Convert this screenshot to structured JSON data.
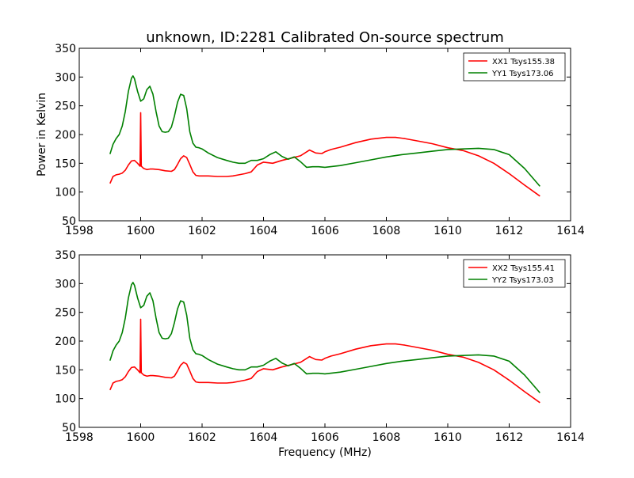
{
  "figure": {
    "title": "unknown, ID:2281 Calibrated On-source spectrum"
  },
  "chart_data": [
    {
      "type": "line",
      "title": "unknown, ID:2281 Calibrated On-source spectrum",
      "xlabel": "",
      "ylabel": "Power in Kelvin",
      "xlim": [
        1598,
        1614
      ],
      "ylim": [
        50,
        350
      ],
      "xticks": [
        1598,
        1600,
        1602,
        1604,
        1606,
        1608,
        1610,
        1612,
        1614
      ],
      "yticks": [
        50,
        100,
        150,
        200,
        250,
        300,
        350
      ],
      "grid": false,
      "legend": "top-right",
      "series": [
        {
          "name": "XX1 Tsys155.38",
          "color": "#ff0000",
          "x": [
            1599.0,
            1599.1,
            1599.2,
            1599.3,
            1599.4,
            1599.5,
            1599.6,
            1599.7,
            1599.8,
            1599.9,
            1599.98,
            1600.0,
            1600.02,
            1600.1,
            1600.2,
            1600.3,
            1600.4,
            1600.6,
            1600.8,
            1601.0,
            1601.1,
            1601.2,
            1601.3,
            1601.4,
            1601.5,
            1601.6,
            1601.7,
            1601.8,
            1601.9,
            1602.0,
            1602.2,
            1602.5,
            1602.8,
            1603.0,
            1603.2,
            1603.4,
            1603.6,
            1603.8,
            1604.0,
            1604.3,
            1604.6,
            1604.9,
            1605.2,
            1605.5,
            1605.7,
            1605.9,
            1606.0,
            1606.2,
            1606.5,
            1607.0,
            1607.5,
            1608.0,
            1608.3,
            1608.6,
            1609.0,
            1609.5,
            1610.0,
            1610.5,
            1611.0,
            1611.5,
            1612.0,
            1612.5,
            1613.0
          ],
          "values": [
            115,
            127,
            130,
            131,
            133,
            138,
            147,
            154,
            155,
            150,
            145,
            238,
            145,
            141,
            139,
            140,
            140,
            139,
            137,
            136,
            139,
            148,
            158,
            163,
            160,
            148,
            135,
            129,
            128,
            128,
            128,
            127,
            127,
            128,
            130,
            132,
            135,
            147,
            152,
            150,
            155,
            159,
            163,
            173,
            168,
            167,
            170,
            174,
            178,
            186,
            192,
            195,
            195,
            193,
            189,
            184,
            177,
            172,
            163,
            150,
            132,
            112,
            93
          ]
        },
        {
          "name": "YY1 Tsys173.06",
          "color": "#008000",
          "x": [
            1599.0,
            1599.1,
            1599.2,
            1599.3,
            1599.4,
            1599.5,
            1599.6,
            1599.7,
            1599.75,
            1599.8,
            1599.9,
            1600.0,
            1600.1,
            1600.2,
            1600.3,
            1600.4,
            1600.5,
            1600.6,
            1600.7,
            1600.8,
            1600.9,
            1601.0,
            1601.1,
            1601.2,
            1601.3,
            1601.4,
            1601.5,
            1601.6,
            1601.7,
            1601.8,
            1601.9,
            1602.0,
            1602.2,
            1602.5,
            1602.8,
            1603.0,
            1603.2,
            1603.4,
            1603.6,
            1603.8,
            1604.0,
            1604.2,
            1604.4,
            1604.6,
            1604.8,
            1605.0,
            1605.2,
            1605.4,
            1605.6,
            1605.8,
            1606.0,
            1606.5,
            1607.0,
            1607.5,
            1608.0,
            1608.5,
            1609.0,
            1609.5,
            1610.0,
            1610.5,
            1611.0,
            1611.5,
            1612.0,
            1612.5,
            1613.0
          ],
          "values": [
            166,
            183,
            193,
            200,
            215,
            240,
            275,
            298,
            302,
            297,
            275,
            258,
            262,
            278,
            284,
            270,
            240,
            215,
            205,
            204,
            205,
            213,
            232,
            256,
            270,
            268,
            245,
            205,
            185,
            178,
            177,
            175,
            168,
            160,
            155,
            152,
            150,
            150,
            155,
            155,
            158,
            165,
            170,
            162,
            157,
            161,
            153,
            143,
            144,
            144,
            143,
            146,
            151,
            156,
            161,
            165,
            168,
            171,
            174,
            175,
            176,
            174,
            165,
            141,
            110
          ]
        }
      ]
    },
    {
      "type": "line",
      "title": "",
      "xlabel": "Frequency (MHz)",
      "ylabel": "",
      "xlim": [
        1598,
        1614
      ],
      "ylim": [
        50,
        350
      ],
      "xticks": [
        1598,
        1600,
        1602,
        1604,
        1606,
        1608,
        1610,
        1612,
        1614
      ],
      "yticks": [
        50,
        100,
        150,
        200,
        250,
        300,
        350
      ],
      "grid": false,
      "legend": "top-right",
      "series": [
        {
          "name": "XX2 Tsys155.41",
          "color": "#ff0000",
          "x": [
            1599.0,
            1599.1,
            1599.2,
            1599.3,
            1599.4,
            1599.5,
            1599.6,
            1599.7,
            1599.8,
            1599.9,
            1599.98,
            1600.0,
            1600.02,
            1600.1,
            1600.2,
            1600.3,
            1600.4,
            1600.6,
            1600.8,
            1601.0,
            1601.1,
            1601.2,
            1601.3,
            1601.4,
            1601.5,
            1601.6,
            1601.7,
            1601.8,
            1601.9,
            1602.0,
            1602.2,
            1602.5,
            1602.8,
            1603.0,
            1603.2,
            1603.4,
            1603.6,
            1603.8,
            1604.0,
            1604.3,
            1604.6,
            1604.9,
            1605.2,
            1605.5,
            1605.7,
            1605.9,
            1606.0,
            1606.2,
            1606.5,
            1607.0,
            1607.5,
            1608.0,
            1608.3,
            1608.6,
            1609.0,
            1609.5,
            1610.0,
            1610.5,
            1611.0,
            1611.5,
            1612.0,
            1612.5,
            1613.0
          ],
          "values": [
            115,
            127,
            130,
            131,
            133,
            138,
            147,
            154,
            155,
            150,
            145,
            238,
            145,
            141,
            139,
            140,
            140,
            139,
            137,
            136,
            139,
            148,
            158,
            163,
            160,
            148,
            135,
            129,
            128,
            128,
            128,
            127,
            127,
            128,
            130,
            132,
            135,
            147,
            152,
            150,
            155,
            159,
            163,
            173,
            168,
            167,
            170,
            174,
            178,
            186,
            192,
            195,
            195,
            193,
            189,
            184,
            177,
            172,
            163,
            150,
            132,
            112,
            93
          ]
        },
        {
          "name": "YY2 Tsys173.03",
          "color": "#008000",
          "x": [
            1599.0,
            1599.1,
            1599.2,
            1599.3,
            1599.4,
            1599.5,
            1599.6,
            1599.7,
            1599.75,
            1599.8,
            1599.9,
            1600.0,
            1600.1,
            1600.2,
            1600.3,
            1600.4,
            1600.5,
            1600.6,
            1600.7,
            1600.8,
            1600.9,
            1601.0,
            1601.1,
            1601.2,
            1601.3,
            1601.4,
            1601.5,
            1601.6,
            1601.7,
            1601.8,
            1601.9,
            1602.0,
            1602.2,
            1602.5,
            1602.8,
            1603.0,
            1603.2,
            1603.4,
            1603.6,
            1603.8,
            1604.0,
            1604.2,
            1604.4,
            1604.6,
            1604.8,
            1605.0,
            1605.2,
            1605.4,
            1605.6,
            1605.8,
            1606.0,
            1606.5,
            1607.0,
            1607.5,
            1608.0,
            1608.5,
            1609.0,
            1609.5,
            1610.0,
            1610.5,
            1611.0,
            1611.5,
            1612.0,
            1612.5,
            1613.0
          ],
          "values": [
            166,
            183,
            193,
            200,
            215,
            240,
            275,
            298,
            302,
            297,
            275,
            258,
            262,
            278,
            284,
            270,
            240,
            215,
            205,
            204,
            205,
            213,
            232,
            256,
            270,
            268,
            245,
            205,
            185,
            178,
            177,
            175,
            168,
            160,
            155,
            152,
            150,
            150,
            155,
            155,
            158,
            165,
            170,
            162,
            157,
            161,
            153,
            143,
            144,
            144,
            143,
            146,
            151,
            156,
            161,
            165,
            168,
            171,
            174,
            175,
            176,
            174,
            165,
            141,
            110
          ]
        }
      ]
    }
  ]
}
